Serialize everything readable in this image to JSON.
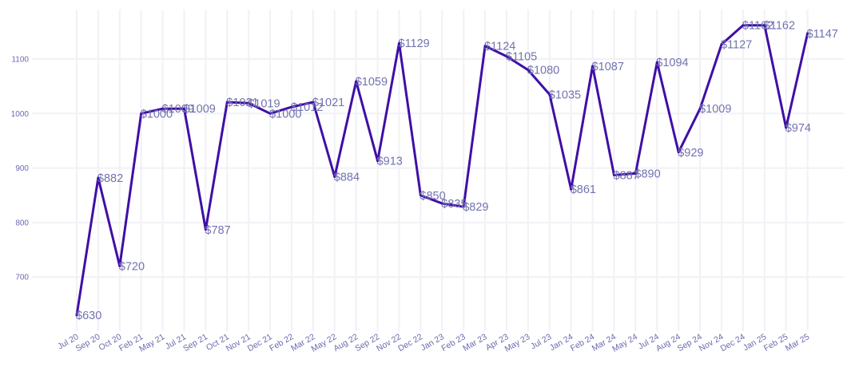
{
  "chart_data": {
    "type": "line",
    "title": "",
    "xlabel": "",
    "ylabel": "",
    "categories": [
      "Jul 20",
      "Sep 20",
      "Oct 20",
      "Feb 21",
      "May 21",
      "Jul 21",
      "Sep 21",
      "Oct 21",
      "Nov 21",
      "Dec 21",
      "Feb 22",
      "Mar 22",
      "May 22",
      "Aug 22",
      "Sep 22",
      "Nov 22",
      "Dec 22",
      "Jan 23",
      "Feb 23",
      "Mar 23",
      "Apr 23",
      "May 23",
      "Jul 23",
      "Jan 24",
      "Feb 24",
      "Mar 24",
      "May 24",
      "Jul 24",
      "Aug 24",
      "Sep 24",
      "Nov 24",
      "Dec 24",
      "Jan 25",
      "Feb 25",
      "Mar 25"
    ],
    "values": [
      630,
      882,
      720,
      1000,
      1009,
      1009,
      787,
      1021,
      1019,
      1000,
      1012,
      1021,
      884,
      1059,
      913,
      1129,
      850,
      835,
      829,
      1124,
      1105,
      1080,
      1035,
      861,
      1087,
      887,
      890,
      1094,
      929,
      1009,
      1127,
      1162,
      1162,
      974,
      1147
    ],
    "data_labels": [
      "$630",
      "$882",
      "$720",
      "$1000",
      "$1009",
      "$1009",
      "$787",
      "$1021",
      "$1019",
      "$1000",
      "$1012",
      "$1021",
      "$884",
      "$1059",
      "$913",
      "$1129",
      "$850",
      "$835",
      "$829",
      "$1124",
      "$1105",
      "$1080",
      "$1035",
      "$861",
      "$1087",
      "$887",
      "$890",
      "$1094",
      "$929",
      "$1009",
      "$1127",
      "$1162",
      "$1162",
      "$974",
      "$1147"
    ],
    "y_ticks": [
      700,
      800,
      900,
      1000,
      1100
    ],
    "ylim": [
      605,
      1195
    ],
    "grid": true,
    "legend": "none",
    "line_color": "#3f0fa6",
    "label_color": "#7272b0",
    "tick_color": "#6a6ab0",
    "grid_color": "#f1f1f6"
  }
}
